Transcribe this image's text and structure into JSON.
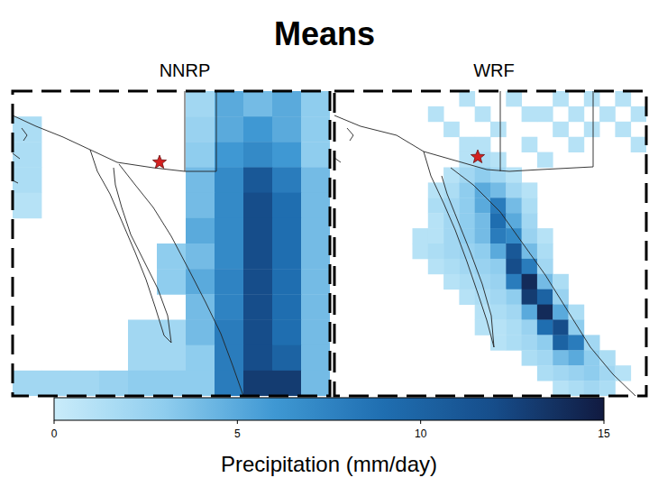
{
  "chart_data": {
    "type": "heatmap",
    "title": "Means",
    "tick_labels": false,
    "color_range": [
      0,
      15
    ],
    "color_ticks": [
      0,
      5,
      10,
      15
    ],
    "color_label": "Precipitation (mm/day)",
    "panels": [
      {
        "title": "NNRP",
        "cells": [
          [
            null,
            null,
            null,
            null,
            null,
            null,
            2,
            5,
            4,
            5,
            3
          ],
          [
            1.5,
            null,
            null,
            null,
            null,
            null,
            2.5,
            5,
            6,
            5,
            3
          ],
          [
            1.5,
            null,
            null,
            null,
            null,
            null,
            3,
            6,
            7,
            6,
            3
          ],
          [
            1.5,
            null,
            null,
            null,
            null,
            null,
            4,
            7,
            11,
            8,
            4
          ],
          [
            1,
            null,
            null,
            null,
            null,
            null,
            4,
            7,
            12,
            9,
            4
          ],
          [
            null,
            null,
            null,
            null,
            null,
            null,
            5,
            7,
            12,
            9,
            4
          ],
          [
            null,
            null,
            null,
            null,
            null,
            3,
            4,
            7,
            12,
            9,
            4
          ],
          [
            null,
            null,
            null,
            null,
            null,
            3,
            5,
            7.5,
            12,
            9,
            4
          ],
          [
            null,
            null,
            null,
            null,
            null,
            null,
            4,
            7.5,
            12,
            9,
            4
          ],
          [
            null,
            null,
            null,
            null,
            2,
            2,
            4,
            8,
            12,
            9,
            4
          ],
          [
            null,
            null,
            null,
            null,
            2,
            2,
            3,
            8,
            12,
            10,
            4
          ],
          [
            2,
            2,
            2,
            2.5,
            3,
            3,
            3,
            8,
            13,
            13,
            4
          ]
        ]
      },
      {
        "title": "WRF",
        "cells": [
          [
            null,
            null,
            null,
            null,
            null,
            null,
            null,
            null,
            1,
            null,
            null,
            1,
            null,
            null,
            1,
            null,
            1,
            null,
            1,
            null
          ],
          [
            null,
            null,
            null,
            null,
            null,
            null,
            1,
            null,
            null,
            1,
            null,
            null,
            1,
            1,
            null,
            1,
            null,
            1,
            null,
            1
          ],
          [
            null,
            null,
            null,
            null,
            null,
            null,
            null,
            1,
            null,
            null,
            1,
            null,
            null,
            null,
            1,
            null,
            1,
            null,
            1,
            null
          ],
          [
            null,
            null,
            null,
            null,
            null,
            null,
            null,
            null,
            1,
            1,
            null,
            null,
            1,
            null,
            null,
            1,
            null,
            null,
            null,
            1
          ],
          [
            null,
            null,
            null,
            null,
            null,
            null,
            null,
            null,
            1,
            1.5,
            1,
            null,
            null,
            1,
            null,
            null,
            null,
            null,
            null,
            null
          ],
          [
            null,
            null,
            null,
            null,
            null,
            null,
            null,
            1,
            2,
            3,
            2,
            1,
            null,
            null,
            null,
            null,
            null,
            null,
            null,
            null
          ],
          [
            null,
            null,
            null,
            null,
            null,
            null,
            1,
            1.5,
            3,
            5,
            4,
            2,
            1,
            null,
            null,
            null,
            null,
            null,
            null,
            null
          ],
          [
            null,
            null,
            null,
            null,
            null,
            null,
            1.5,
            2,
            3,
            5,
            8,
            4,
            1.5,
            null,
            null,
            null,
            null,
            null,
            null,
            null
          ],
          [
            null,
            null,
            null,
            null,
            null,
            null,
            1,
            2,
            3,
            4,
            9,
            5,
            2,
            null,
            null,
            null,
            null,
            null,
            null,
            null
          ],
          [
            null,
            null,
            null,
            null,
            null,
            1,
            1,
            2,
            3,
            4,
            8,
            7,
            2.5,
            1,
            null,
            null,
            null,
            null,
            null,
            null
          ],
          [
            null,
            null,
            null,
            null,
            null,
            1,
            1.5,
            2,
            2.5,
            3,
            5,
            11,
            4,
            1.5,
            null,
            null,
            null,
            null,
            null,
            null
          ],
          [
            null,
            null,
            null,
            null,
            null,
            null,
            1,
            1.5,
            2,
            2.5,
            3,
            12,
            8,
            2,
            null,
            null,
            null,
            null,
            null,
            null
          ],
          [
            null,
            null,
            null,
            null,
            null,
            null,
            null,
            1,
            1.5,
            2,
            2.5,
            8,
            14,
            4,
            1.5,
            null,
            null,
            null,
            null,
            null
          ],
          [
            null,
            null,
            null,
            null,
            null,
            null,
            null,
            null,
            1,
            1.5,
            2,
            3,
            13,
            10,
            2.5,
            null,
            null,
            null,
            null,
            null
          ],
          [
            null,
            null,
            null,
            null,
            null,
            null,
            null,
            null,
            null,
            1,
            1.5,
            2,
            5,
            14,
            5,
            1.5,
            null,
            null,
            null,
            null
          ],
          [
            null,
            null,
            null,
            null,
            null,
            null,
            null,
            null,
            null,
            1,
            1,
            1.5,
            2.5,
            9,
            12,
            3,
            null,
            null,
            null,
            null
          ],
          [
            null,
            null,
            null,
            null,
            null,
            null,
            null,
            null,
            null,
            null,
            1,
            1.5,
            2,
            3,
            10,
            8,
            2,
            null,
            null,
            null
          ],
          [
            null,
            null,
            null,
            null,
            null,
            null,
            null,
            null,
            null,
            null,
            null,
            null,
            1.5,
            2,
            4,
            5,
            3,
            1.5,
            null,
            null
          ],
          [
            null,
            null,
            null,
            null,
            null,
            null,
            null,
            null,
            null,
            null,
            null,
            null,
            null,
            1.5,
            2,
            2.5,
            3,
            2,
            1,
            null
          ],
          [
            null,
            null,
            null,
            null,
            null,
            null,
            null,
            null,
            null,
            null,
            null,
            null,
            null,
            null,
            1,
            1.5,
            2,
            1.5,
            null,
            null
          ]
        ]
      }
    ]
  }
}
